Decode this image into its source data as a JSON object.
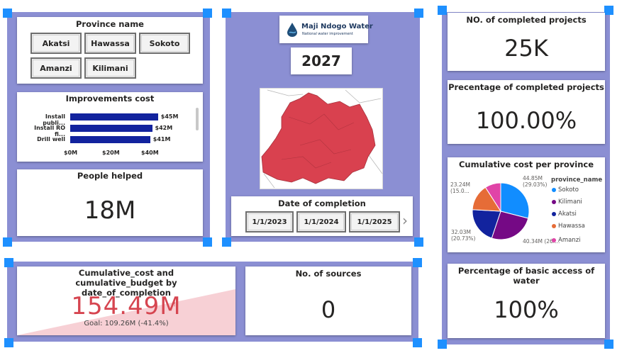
{
  "province_slicer": {
    "title": "Province name",
    "options": [
      "Akatsi",
      "Hawassa",
      "Sokoto",
      "Amanzi",
      "Kilimani"
    ]
  },
  "improvements": {
    "title": "Improvements cost",
    "rows": [
      {
        "label": "Install publi...",
        "value_label": "$45M",
        "value": 45
      },
      {
        "label": "Install RO fi...",
        "value_label": "$42M",
        "value": 42
      },
      {
        "label": "Drill well",
        "value_label": "$41M",
        "value": 41
      }
    ],
    "ticks": [
      "$0M",
      "$20M",
      "$40M"
    ],
    "xlim": [
      0,
      50
    ]
  },
  "people_helped": {
    "title": "People helped",
    "value": "18M"
  },
  "logo": {
    "name": "Maji Ndogo Water",
    "tagline": "National water improvement"
  },
  "year": "2027",
  "date_slicer": {
    "title": "Date of completion",
    "options": [
      "1/1/2023",
      "1/1/2024",
      "1/1/2025"
    ],
    "next_glyph": "›"
  },
  "completed_projects": {
    "title": "NO. of completed projects",
    "value": "25K"
  },
  "pct_completed": {
    "title": "Precentage of completed projects",
    "value": "100.00%"
  },
  "cum_cost": {
    "title": "Cumulative cost per province",
    "legend_title": "province_name",
    "colors": {
      "Sokoto": "#118dff",
      "Kilimani": "#750985",
      "Akatsi": "#12239e",
      "Hawassa": "#e66c37",
      "Amanzi": "#e044a7"
    }
  },
  "chart_data": {
    "type": "pie",
    "title": "Cumulative cost per province",
    "legend_title": "province_name",
    "categories": [
      "Sokoto",
      "Kilimani",
      "Akatsi",
      "Hawassa",
      "Amanzi"
    ],
    "values": [
      44.85,
      40.34,
      32.03,
      23.24,
      14.0
    ],
    "percent": [
      29.03,
      26.1,
      20.73,
      15.0,
      9.1
    ],
    "data_labels": [
      {
        "value": "44.85M",
        "percent": "(29.03%)"
      },
      {
        "value": "40.34M (26....",
        "percent": ""
      },
      {
        "value": "32.03M",
        "percent": "(20.73%)"
      },
      {
        "value": "23.24M",
        "percent": "(15.0..."
      },
      {
        "value": "",
        "percent": ""
      }
    ],
    "legend_position": "right"
  },
  "basic_access": {
    "title": "Percentage of basic access of water",
    "value": "100%"
  },
  "budget_kpi": {
    "title": "Cumulative_cost and cumulative_budget by date_of_completion",
    "value": "154.49M",
    "warning": "!",
    "goal": "Goal: 109.26M (-41.4%)",
    "value_color": "#d64550"
  },
  "sources": {
    "title": "No. of sources",
    "value": "0"
  }
}
